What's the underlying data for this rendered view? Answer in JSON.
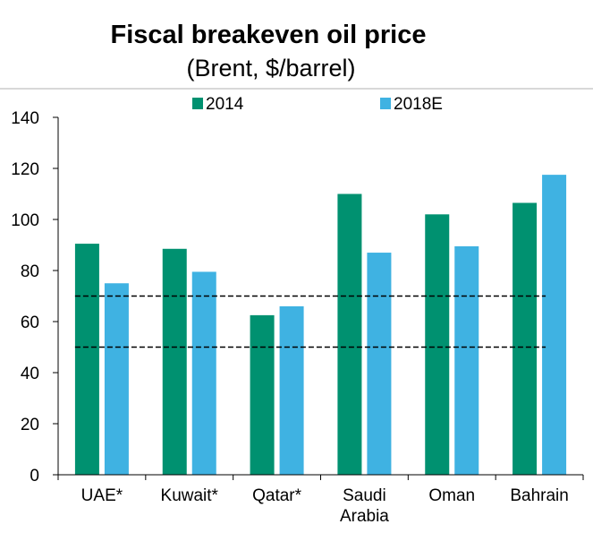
{
  "chart_data": {
    "type": "bar",
    "title": "Fiscal breakeven oil price",
    "subtitle": "(Brent, $/barrel)",
    "categories": [
      [
        "UAE*"
      ],
      [
        "Kuwait*"
      ],
      [
        "Qatar*"
      ],
      [
        "Saudi",
        "Arabia"
      ],
      [
        "Oman"
      ],
      [
        "Bahrain"
      ]
    ],
    "series": [
      {
        "name": "2014",
        "color": "#009170",
        "values": [
          90.5,
          88.5,
          62.5,
          110,
          102,
          106.5
        ]
      },
      {
        "name": "2018E",
        "color": "#3fb2e2",
        "values": [
          75,
          79.5,
          66,
          87,
          89.5,
          117.5
        ]
      }
    ],
    "ylim": [
      0,
      140
    ],
    "yticks": [
      0,
      20,
      40,
      60,
      80,
      100,
      120,
      140
    ],
    "reference_lines": [
      {
        "value": 70,
        "style": "dashed"
      },
      {
        "value": 50,
        "style": "dashed"
      }
    ],
    "legend_position": "top",
    "grid": false,
    "xlabel": "",
    "ylabel": ""
  }
}
